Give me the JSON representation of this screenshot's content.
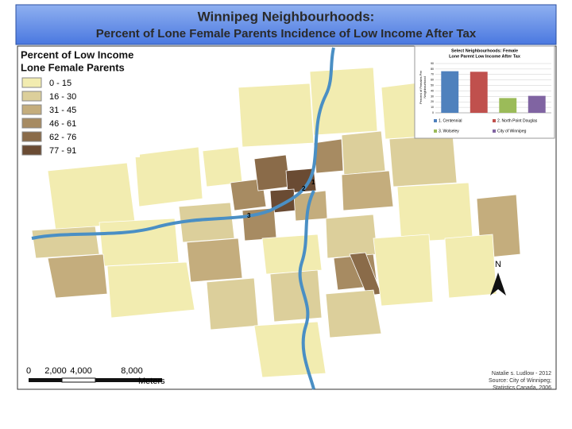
{
  "map": {
    "title": "Winnipeg Neighbourhoods:",
    "subtitle": "Percent of Lone Female Parents Incidence of Low Income After Tax",
    "legend": {
      "title": [
        "Percent of Low Income",
        "Lone Female Parents"
      ],
      "classes": [
        {
          "label": "0 - 15",
          "color": "#f2ecb0"
        },
        {
          "label": "16 - 30",
          "color": "#dccf9b"
        },
        {
          "label": "31 - 45",
          "color": "#c4ad7d"
        },
        {
          "label": "46 - 61",
          "color": "#a78b62"
        },
        {
          "label": "62 - 76",
          "color": "#8a6b49"
        },
        {
          "label": "77 - 91",
          "color": "#6a4b33"
        }
      ]
    },
    "area_labels": [
      "1",
      "2",
      "3"
    ],
    "north": "N",
    "scale_labels": [
      "0",
      "2,000",
      "4,000",
      "8,000"
    ],
    "scale_unit": "Meters",
    "credits": [
      "Natalie s. Ludlow - 2012",
      "Source: City of Winnipeg;",
      "Statistics Canada, 2006"
    ]
  },
  "chart_data": {
    "type": "bar",
    "title": [
      "Select Neighbourhoods: Female",
      "Lone Parent Low Income After Tax"
    ],
    "y_label": [
      "Percent of Females Per",
      "Neighbourhood"
    ],
    "categories": [
      "1. Centennial",
      "2. North Point Douglas",
      "3. Wolseley",
      "City of Winnipeg"
    ],
    "values": [
      76,
      75,
      27,
      31
    ],
    "colors": [
      "#4f81bd",
      "#c0504d",
      "#9bbb59",
      "#8064a2"
    ],
    "ylim": [
      0,
      90
    ],
    "yticks": [
      0,
      10,
      20,
      30,
      40,
      50,
      60,
      70,
      80,
      90
    ],
    "grid": true
  }
}
